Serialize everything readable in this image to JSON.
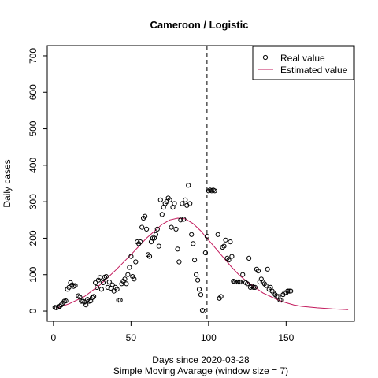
{
  "chart_data": {
    "type": "scatter",
    "title": "Cameroon / Logistic",
    "xlabel": "Days since 2020-03-28",
    "subtitle": "Simple Moving Avarage (window size = 7)",
    "ylabel": "Daily cases",
    "xlim": [
      -4,
      194
    ],
    "ylim": [
      -28,
      728
    ],
    "x_ticks": [
      0,
      50,
      100,
      150
    ],
    "y_ticks": [
      0,
      100,
      200,
      300,
      400,
      500,
      600,
      700
    ],
    "vline_x": 99,
    "legend": {
      "position": "top-right",
      "entries": [
        "Real value",
        "Estimated value"
      ]
    },
    "series": [
      {
        "name": "Real value",
        "kind": "points",
        "color": "#000000",
        "points": [
          [
            1,
            10
          ],
          [
            2,
            9
          ],
          [
            3,
            11
          ],
          [
            4,
            13
          ],
          [
            5,
            17
          ],
          [
            6,
            22
          ],
          [
            7,
            27
          ],
          [
            8,
            28
          ],
          [
            9,
            60
          ],
          [
            10,
            65
          ],
          [
            11,
            78
          ],
          [
            12,
            72
          ],
          [
            13,
            68
          ],
          [
            14,
            70
          ],
          [
            16,
            42
          ],
          [
            17,
            38
          ],
          [
            18,
            27
          ],
          [
            19,
            27
          ],
          [
            20,
            25
          ],
          [
            21,
            17
          ],
          [
            22,
            32
          ],
          [
            23,
            27
          ],
          [
            24,
            28
          ],
          [
            25,
            37
          ],
          [
            26,
            40
          ],
          [
            27,
            78
          ],
          [
            28,
            65
          ],
          [
            29,
            85
          ],
          [
            30,
            92
          ],
          [
            31,
            60
          ],
          [
            32,
            78
          ],
          [
            33,
            93
          ],
          [
            34,
            95
          ],
          [
            35,
            65
          ],
          [
            36,
            80
          ],
          [
            37,
            63
          ],
          [
            38,
            72
          ],
          [
            39,
            55
          ],
          [
            40,
            65
          ],
          [
            41,
            60
          ],
          [
            42,
            30
          ],
          [
            43,
            30
          ],
          [
            44,
            75
          ],
          [
            45,
            82
          ],
          [
            46,
            88
          ],
          [
            47,
            75
          ],
          [
            48,
            100
          ],
          [
            49,
            120
          ],
          [
            50,
            150
          ],
          [
            51,
            95
          ],
          [
            52,
            88
          ],
          [
            53,
            135
          ],
          [
            54,
            190
          ],
          [
            55,
            185
          ],
          [
            56,
            190
          ],
          [
            57,
            230
          ],
          [
            58,
            255
          ],
          [
            59,
            260
          ],
          [
            60,
            225
          ],
          [
            61,
            155
          ],
          [
            62,
            150
          ],
          [
            63,
            190
          ],
          [
            64,
            200
          ],
          [
            65,
            200
          ],
          [
            66,
            210
          ],
          [
            67,
            225
          ],
          [
            68,
            178
          ],
          [
            69,
            305
          ],
          [
            70,
            265
          ],
          [
            71,
            285
          ],
          [
            72,
            295
          ],
          [
            73,
            300
          ],
          [
            74,
            310
          ],
          [
            75,
            305
          ],
          [
            76,
            230
          ],
          [
            77,
            285
          ],
          [
            78,
            295
          ],
          [
            79,
            225
          ],
          [
            80,
            170
          ],
          [
            81,
            135
          ],
          [
            82,
            250
          ],
          [
            83,
            295
          ],
          [
            84,
            252
          ],
          [
            85,
            305
          ],
          [
            86,
            290
          ],
          [
            87,
            345
          ],
          [
            88,
            295
          ],
          [
            89,
            210
          ],
          [
            90,
            185
          ],
          [
            91,
            140
          ],
          [
            92,
            100
          ],
          [
            93,
            85
          ],
          [
            94,
            60
          ],
          [
            95,
            45
          ],
          [
            96,
            2
          ],
          [
            97,
            0
          ],
          [
            98,
            160
          ],
          [
            99,
            205
          ],
          [
            100,
            330
          ],
          [
            101,
            332
          ],
          [
            102,
            330
          ],
          [
            103,
            332
          ],
          [
            104,
            330
          ],
          [
            106,
            210
          ],
          [
            107,
            35
          ],
          [
            108,
            40
          ],
          [
            109,
            175
          ],
          [
            110,
            178
          ],
          [
            111,
            195
          ],
          [
            112,
            145
          ],
          [
            113,
            140
          ],
          [
            114,
            190
          ],
          [
            115,
            150
          ],
          [
            116,
            82
          ],
          [
            117,
            80
          ],
          [
            118,
            80
          ],
          [
            119,
            80
          ],
          [
            120,
            80
          ],
          [
            121,
            80
          ],
          [
            122,
            100
          ],
          [
            123,
            80
          ],
          [
            124,
            78
          ],
          [
            125,
            75
          ],
          [
            126,
            145
          ],
          [
            127,
            65
          ],
          [
            128,
            68
          ],
          [
            129,
            65
          ],
          [
            130,
            65
          ],
          [
            131,
            115
          ],
          [
            132,
            110
          ],
          [
            133,
            80
          ],
          [
            134,
            88
          ],
          [
            135,
            80
          ],
          [
            136,
            75
          ],
          [
            137,
            70
          ],
          [
            138,
            115
          ],
          [
            139,
            60
          ],
          [
            140,
            65
          ],
          [
            141,
            55
          ],
          [
            142,
            50
          ],
          [
            143,
            45
          ],
          [
            144,
            40
          ],
          [
            145,
            40
          ],
          [
            146,
            30
          ],
          [
            147,
            30
          ],
          [
            148,
            45
          ],
          [
            149,
            50
          ],
          [
            150,
            50
          ],
          [
            151,
            55
          ],
          [
            152,
            55
          ],
          [
            153,
            55
          ]
        ]
      },
      {
        "name": "Estimated value",
        "kind": "line",
        "color": "#c2185b",
        "points": [
          [
            2,
            8
          ],
          [
            10,
            20
          ],
          [
            20,
            40
          ],
          [
            30,
            72
          ],
          [
            40,
            112
          ],
          [
            50,
            155
          ],
          [
            60,
            200
          ],
          [
            70,
            238
          ],
          [
            75,
            250
          ],
          [
            80,
            255
          ],
          [
            85,
            253
          ],
          [
            90,
            240
          ],
          [
            95,
            220
          ],
          [
            100,
            195
          ],
          [
            105,
            170
          ],
          [
            110,
            145
          ],
          [
            115,
            120
          ],
          [
            120,
            98
          ],
          [
            125,
            80
          ],
          [
            130,
            65
          ],
          [
            135,
            50
          ],
          [
            140,
            40
          ],
          [
            145,
            30
          ],
          [
            150,
            23
          ],
          [
            155,
            17
          ],
          [
            160,
            13
          ],
          [
            170,
            9
          ],
          [
            180,
            6
          ],
          [
            190,
            4
          ]
        ]
      }
    ]
  }
}
